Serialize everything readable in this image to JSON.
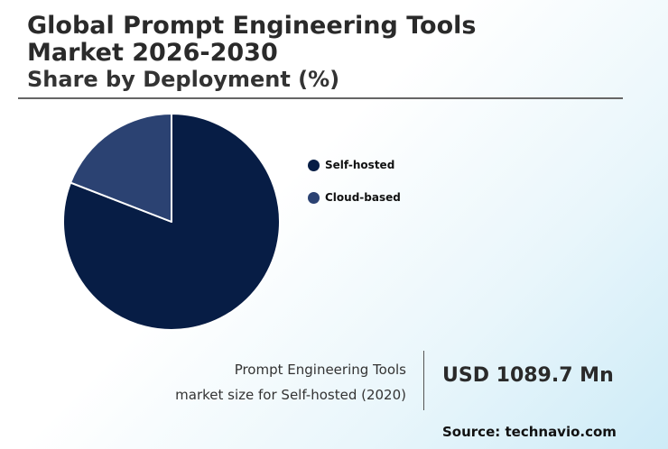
{
  "header": {
    "title_line1": "Global Prompt Engineering Tools",
    "title_line2": "Market 2026-2030",
    "subtitle": "Share by Deployment (%)"
  },
  "chart_data": {
    "type": "pie",
    "title": "Global Prompt Engineering Tools Market 2026-2030",
    "subtitle": "Share by Deployment (%)",
    "categories": [
      "Self-hosted",
      "Cloud-based"
    ],
    "values": [
      80.9,
      19.1
    ],
    "colors": [
      "#071d45",
      "#2b4272"
    ],
    "legend": "right",
    "start_angle_deg": 0,
    "direction": "clockwise"
  },
  "legend": {
    "items": [
      {
        "label": "Self-hosted",
        "color": "#071d45"
      },
      {
        "label": "Cloud-based",
        "color": "#2b4272"
      }
    ]
  },
  "footer": {
    "note_line1": "Prompt Engineering Tools",
    "note_line2": "market size for Self-hosted (2020)",
    "value": "USD 1089.7 Mn",
    "source": "Source: technavio.com"
  }
}
